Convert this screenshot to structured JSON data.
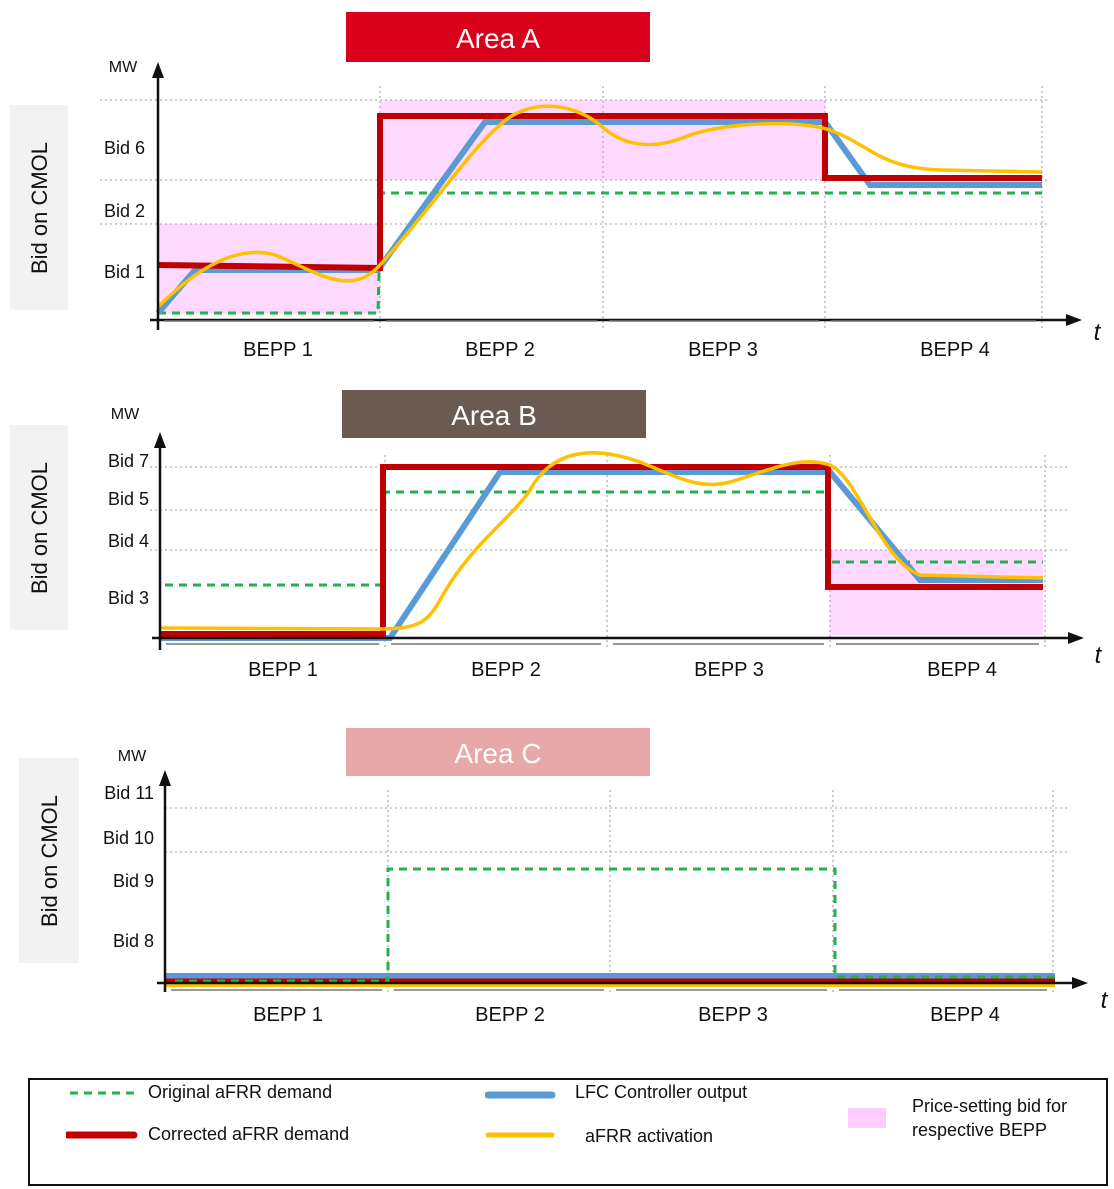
{
  "ylabel_side": "Bid on CMOL",
  "axis_unit": "MW",
  "time_label": "t",
  "periods": [
    "BEPP 1",
    "BEPP 2",
    "BEPP 3",
    "BEPP 4"
  ],
  "colors": {
    "original": "#22b14c",
    "corrected": "#c00000",
    "lfc": "#5b9bd5",
    "activation": "#ffc000",
    "price_bid": "#ffccff",
    "grid": "#b0b0b0"
  },
  "areas": [
    {
      "title": "Area A",
      "title_color": "#d9001b",
      "bids": [
        "Bid 6",
        "Bid 2",
        "Bid 1"
      ]
    },
    {
      "title": "Area B",
      "title_color": "#6b5a52",
      "bids": [
        "Bid 7",
        "Bid 5",
        "Bid 4",
        "Bid 3"
      ]
    },
    {
      "title": "Area C",
      "title_color": "#e8a8a8",
      "bids": [
        "Bid 11",
        "Bid 10",
        "Bid 9",
        "Bid 8"
      ]
    }
  ],
  "legend": {
    "original": "Original aFRR demand",
    "corrected": "Corrected aFRR demand",
    "lfc": "LFC Controller output",
    "activation": "aFRR activation",
    "price_bid": "Price-setting bid for respective BEPP"
  }
}
